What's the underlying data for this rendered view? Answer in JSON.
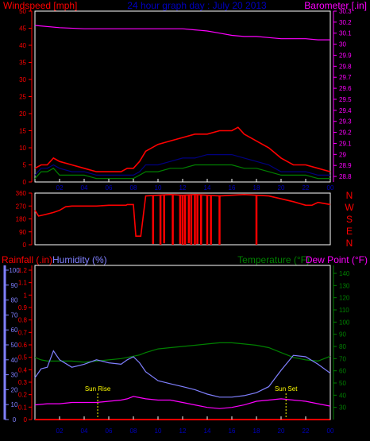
{
  "colors": {
    "background": "#000000",
    "frame": "#ffffff",
    "red": "#ff0000",
    "magenta": "#ff00ff",
    "green": "#008000",
    "navy": "#000080",
    "blue_lavender": "#8080ff",
    "yellow": "#ffff00",
    "title_blue": "#0000c0"
  },
  "chart_data": [
    {
      "type": "line",
      "title": "24 hour graph day : July 20 2013",
      "left_label": "Windspeed [mph]",
      "right_label": "Barometer [.in]",
      "x_ticks": [
        "02",
        "04",
        "06",
        "08",
        "10",
        "12",
        "14",
        "16",
        "18",
        "20",
        "22",
        "00"
      ],
      "x_range": [
        0,
        24
      ],
      "y_left_ticks": [
        0,
        5,
        10,
        15,
        20,
        25,
        30,
        35,
        40,
        45,
        50
      ],
      "y_left_range": [
        0,
        50
      ],
      "y_right_ticks": [
        "28.8",
        "28.9",
        "29",
        "29.1",
        "29.2",
        "29.3",
        "29.4",
        "29.5",
        "29.6",
        "29.7",
        "29.8",
        "29.9",
        "30",
        "30.1",
        "30.2",
        "30.3"
      ],
      "y_right_range": [
        28.75,
        30.3
      ],
      "series": [
        {
          "key": "barometer",
          "axis": "right",
          "color": "#ff00ff",
          "x": [
            0,
            2,
            4,
            6,
            8,
            10,
            12,
            13,
            14,
            15,
            16,
            17,
            18,
            19,
            20,
            21,
            22,
            23,
            24
          ],
          "values": [
            30.17,
            30.15,
            30.14,
            30.14,
            30.14,
            30.14,
            30.14,
            30.13,
            30.12,
            30.1,
            30.08,
            30.07,
            30.07,
            30.06,
            30.05,
            30.05,
            30.05,
            30.04,
            30.04
          ]
        },
        {
          "key": "wind_gust",
          "axis": "left",
          "color": "#ff0000",
          "x": [
            0,
            0.5,
            1,
            1.5,
            2,
            3,
            4,
            5,
            6,
            7,
            7.5,
            8,
            8.5,
            9,
            10,
            11,
            12,
            13,
            14,
            15,
            16,
            16.5,
            17,
            18,
            19,
            20,
            21,
            22,
            23,
            24
          ],
          "values": [
            4,
            5,
            5,
            7,
            6,
            5,
            4,
            3,
            3,
            3,
            4,
            4,
            6,
            9,
            11,
            12,
            13,
            14,
            14,
            15,
            15,
            16,
            14,
            12,
            10,
            7,
            5,
            5,
            4,
            3
          ]
        },
        {
          "key": "wind_avg",
          "axis": "left",
          "color": "#000080",
          "x": [
            0,
            0.5,
            1,
            1.5,
            2,
            3,
            4,
            5,
            6,
            7,
            7.5,
            8,
            8.5,
            9,
            10,
            11,
            12,
            13,
            14,
            15,
            16,
            17,
            18,
            19,
            20,
            21,
            22,
            23,
            24
          ],
          "values": [
            2,
            4,
            4,
            5,
            4,
            3,
            3,
            2,
            2,
            2,
            2,
            2,
            3,
            5,
            5,
            6,
            7,
            7,
            8,
            8,
            8,
            7,
            6,
            5,
            3,
            3,
            3,
            2,
            2
          ]
        },
        {
          "key": "wind_speed",
          "axis": "left",
          "color": "#008000",
          "x": [
            0,
            0.5,
            1,
            1.5,
            2,
            3,
            4,
            5,
            6,
            7,
            7.5,
            8,
            8.5,
            9,
            10,
            11,
            12,
            13,
            14,
            15,
            16,
            17,
            18,
            19,
            20,
            21,
            22,
            23,
            24
          ],
          "values": [
            1,
            3,
            3,
            4,
            2,
            2,
            2,
            1,
            1,
            1,
            1,
            1,
            2,
            3,
            3,
            4,
            4,
            5,
            5,
            5,
            5,
            4,
            4,
            3,
            2,
            2,
            2,
            1,
            1
          ]
        }
      ]
    },
    {
      "type": "line",
      "title": "",
      "y_left_ticks": [
        0,
        90,
        180,
        270,
        360
      ],
      "y_left_range": [
        0,
        360
      ],
      "right_labels": [
        "N",
        "W",
        "S",
        "E",
        "N"
      ],
      "series": [
        {
          "key": "wind_direction",
          "color": "#ff0000",
          "x": [
            0,
            0.3,
            0.8,
            1.5,
            2.0,
            2.5,
            3.0,
            4,
            5,
            6,
            7,
            7.4,
            7.5,
            8.0,
            8.2,
            8.6,
            9,
            10,
            11,
            12,
            13,
            14,
            15,
            16,
            17,
            18,
            19,
            20,
            21,
            22,
            22.5,
            23,
            24
          ],
          "values": [
            240,
            200,
            210,
            225,
            240,
            265,
            270,
            270,
            270,
            275,
            275,
            275,
            280,
            280,
            60,
            60,
            340,
            345,
            350,
            345,
            350,
            345,
            340,
            345,
            350,
            345,
            340,
            320,
            300,
            275,
            275,
            295,
            280
          ]
        },
        {
          "key": "direction_drops",
          "color": "#ff0000",
          "x": [
            9.6,
            10.2,
            10.5,
            11.2,
            11.8,
            12.0,
            12.2,
            12.5,
            12.7,
            13.0,
            13.2,
            13.5,
            14.0,
            14.3,
            15.0,
            18.0
          ],
          "values": [
            5,
            0,
            10,
            0,
            5,
            0,
            0,
            10,
            0,
            0,
            5,
            0,
            0,
            0,
            0,
            0
          ]
        }
      ]
    },
    {
      "type": "line",
      "title": "",
      "left_label": "Rainfall (.in)",
      "humidity_label": "Humidity (%)",
      "right_label_temp": "Temperature (°F)",
      "right_label_dew": "Dew Point (°F)",
      "x_ticks": [
        "02",
        "04",
        "06",
        "08",
        "10",
        "12",
        "14",
        "16",
        "18",
        "20",
        "22",
        "00"
      ],
      "x_range": [
        0,
        24
      ],
      "rain_ticks": [
        "0",
        "0.1",
        "0.2",
        "0.3",
        "0.4",
        "0.5",
        "0.6",
        "0.7",
        "0.8",
        "0.9",
        "1",
        "1.1",
        "1.2"
      ],
      "rain_range": [
        0,
        1.2
      ],
      "humidity_ticks": [
        0,
        10,
        20,
        30,
        40,
        50,
        60,
        70,
        80,
        90,
        100
      ],
      "humidity_range": [
        0,
        100
      ],
      "temp_ticks": [
        30,
        40,
        50,
        60,
        70,
        80,
        90,
        100,
        110,
        120,
        130,
        140
      ],
      "temp_range": [
        20,
        140
      ],
      "annotations": [
        {
          "text": "Sun Rise",
          "x": 5.1,
          "y": 0.23
        },
        {
          "text": "Sun Set",
          "x": 20.4,
          "y": 0.23
        }
      ],
      "series": [
        {
          "key": "rainfall",
          "axis": "rain",
          "color": "#ff0000",
          "x": [
            0,
            24
          ],
          "values": [
            0,
            0
          ]
        },
        {
          "key": "temperature",
          "axis": "temp",
          "color": "#008000",
          "x": [
            0,
            0.5,
            1,
            2,
            3,
            4,
            5,
            6,
            7,
            7.5,
            8,
            8.5,
            9,
            10,
            11,
            12,
            13,
            14,
            15,
            16,
            17,
            18,
            19,
            20,
            21,
            22,
            23,
            24
          ],
          "values": [
            71,
            69,
            68,
            68,
            68,
            67,
            68,
            69,
            70,
            71,
            72,
            73,
            75,
            78,
            79,
            80,
            81,
            82,
            83,
            83,
            82,
            81,
            79,
            75,
            71,
            69,
            68,
            72
          ]
        },
        {
          "key": "humidity",
          "axis": "humidity",
          "color": "#8080ff",
          "x": [
            0,
            0.5,
            1,
            1.5,
            2,
            3,
            4,
            5,
            6,
            7,
            7.5,
            8,
            8.5,
            9,
            10,
            11,
            12,
            13,
            14,
            15,
            16,
            17,
            18,
            19,
            20,
            21,
            22,
            23,
            24
          ],
          "values": [
            28,
            34,
            35,
            46,
            40,
            35,
            37,
            40,
            38,
            37,
            40,
            42,
            38,
            32,
            26,
            24,
            22,
            20,
            17,
            15,
            15,
            16,
            18,
            22,
            33,
            43,
            42,
            37,
            31
          ]
        },
        {
          "key": "dew_point",
          "axis": "temp",
          "color": "#ff00ff",
          "x": [
            0,
            1,
            2,
            3,
            4,
            5,
            6,
            7,
            7.5,
            8,
            8.5,
            9,
            10,
            11,
            12,
            13,
            14,
            15,
            16,
            17,
            18,
            19,
            20,
            21,
            22,
            23,
            24
          ],
          "values": [
            32,
            33,
            33,
            34,
            34,
            34,
            35,
            36,
            37,
            39,
            38,
            37,
            36,
            36,
            34,
            32,
            30,
            29,
            30,
            32,
            35,
            36,
            37,
            36,
            35,
            33,
            31
          ]
        }
      ]
    }
  ]
}
